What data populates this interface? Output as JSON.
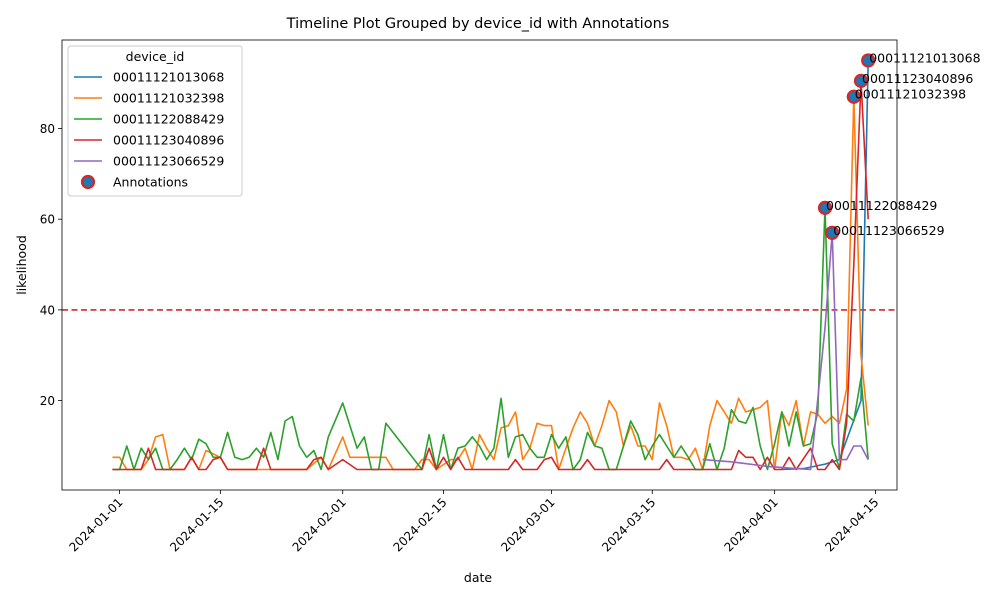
{
  "chart_data": {
    "type": "line",
    "title": "Timeline Plot Grouped by device_id with Annotations",
    "xlabel": "date",
    "ylabel": "likelihood",
    "xlim": [
      "2023-12-24",
      "2024-04-18"
    ],
    "ylim": [
      0,
      100
    ],
    "x_ticks": [
      "2024-01-01",
      "2024-01-15",
      "2024-02-01",
      "2024-02-15",
      "2024-03-01",
      "2024-03-15",
      "2024-04-01",
      "2024-04-15"
    ],
    "y_ticks": [
      20,
      40,
      60,
      80
    ],
    "threshold": {
      "value": 40,
      "color": "#d62728"
    },
    "legend": {
      "title": "device_id",
      "position": "top-left"
    },
    "series": [
      {
        "name": "00011121013068",
        "color": "#1f77b4",
        "points": [
          [
            "2024-04-02",
            4.8
          ],
          [
            "2024-04-05",
            5.0
          ],
          [
            "2024-04-08",
            6.0
          ],
          [
            "2024-04-10",
            7.0
          ],
          [
            "2024-04-13",
            20.0
          ],
          [
            "2024-04-14",
            95.0
          ]
        ]
      },
      {
        "name": "00011121032398",
        "color": "#ff7f0e",
        "points": [
          [
            "2023-12-31",
            7.5
          ],
          [
            "2024-01-01",
            7.5
          ],
          [
            "2024-01-02",
            4.8
          ],
          [
            "2024-01-04",
            4.8
          ],
          [
            "2024-01-05",
            7.0
          ],
          [
            "2024-01-06",
            12.0
          ],
          [
            "2024-01-07",
            12.5
          ],
          [
            "2024-01-08",
            4.8
          ],
          [
            "2024-01-10",
            4.8
          ],
          [
            "2024-01-11",
            7.5
          ],
          [
            "2024-01-12",
            4.8
          ],
          [
            "2024-01-13",
            9.0
          ],
          [
            "2024-01-15",
            7.5
          ],
          [
            "2024-01-16",
            4.8
          ],
          [
            "2024-01-27",
            4.8
          ],
          [
            "2024-01-29",
            7.5
          ],
          [
            "2024-01-30",
            4.8
          ],
          [
            "2024-02-01",
            12.0
          ],
          [
            "2024-02-02",
            7.5
          ],
          [
            "2024-02-07",
            7.5
          ],
          [
            "2024-02-08",
            4.8
          ],
          [
            "2024-02-11",
            4.8
          ],
          [
            "2024-02-12",
            7.0
          ],
          [
            "2024-02-13",
            7.0
          ],
          [
            "2024-02-14",
            4.8
          ],
          [
            "2024-02-16",
            7.0
          ],
          [
            "2024-02-17",
            7.0
          ],
          [
            "2024-02-18",
            9.5
          ],
          [
            "2024-02-19",
            4.8
          ],
          [
            "2024-02-20",
            12.5
          ],
          [
            "2024-02-21",
            9.5
          ],
          [
            "2024-02-22",
            7.0
          ],
          [
            "2024-02-23",
            14.0
          ],
          [
            "2024-02-24",
            14.5
          ],
          [
            "2024-02-25",
            17.5
          ],
          [
            "2024-02-26",
            7.0
          ],
          [
            "2024-02-27",
            9.5
          ],
          [
            "2024-02-28",
            15.0
          ],
          [
            "2024-02-29",
            14.5
          ],
          [
            "2024-03-01",
            14.5
          ],
          [
            "2024-03-02",
            4.8
          ],
          [
            "2024-03-03",
            9.5
          ],
          [
            "2024-03-04",
            14.0
          ],
          [
            "2024-03-05",
            17.5
          ],
          [
            "2024-03-06",
            15.0
          ],
          [
            "2024-03-07",
            10.0
          ],
          [
            "2024-03-08",
            14.5
          ],
          [
            "2024-03-09",
            20.0
          ],
          [
            "2024-03-10",
            17.5
          ],
          [
            "2024-03-11",
            10.0
          ],
          [
            "2024-03-12",
            14.5
          ],
          [
            "2024-03-13",
            10.0
          ],
          [
            "2024-03-14",
            10.0
          ],
          [
            "2024-03-15",
            7.0
          ],
          [
            "2024-03-16",
            19.5
          ],
          [
            "2024-03-17",
            14.5
          ],
          [
            "2024-03-18",
            7.5
          ],
          [
            "2024-03-19",
            7.5
          ],
          [
            "2024-03-20",
            7.0
          ],
          [
            "2024-03-21",
            9.5
          ],
          [
            "2024-03-22",
            4.8
          ],
          [
            "2024-03-23",
            14.5
          ],
          [
            "2024-03-24",
            20.0
          ],
          [
            "2024-03-25",
            17.5
          ],
          [
            "2024-03-26",
            15.0
          ],
          [
            "2024-03-27",
            20.5
          ],
          [
            "2024-03-28",
            17.5
          ],
          [
            "2024-03-29",
            18.0
          ],
          [
            "2024-03-30",
            18.5
          ],
          [
            "2024-03-31",
            20.0
          ],
          [
            "2024-04-01",
            4.8
          ],
          [
            "2024-04-02",
            17.5
          ],
          [
            "2024-04-03",
            14.5
          ],
          [
            "2024-04-04",
            20.0
          ],
          [
            "2024-04-05",
            10.0
          ],
          [
            "2024-04-06",
            17.5
          ],
          [
            "2024-04-07",
            17.0
          ],
          [
            "2024-04-08",
            15.0
          ],
          [
            "2024-04-09",
            16.5
          ],
          [
            "2024-04-10",
            15.0
          ],
          [
            "2024-04-11",
            22.5
          ],
          [
            "2024-04-12",
            87.0
          ],
          [
            "2024-04-13",
            30.0
          ],
          [
            "2024-04-14",
            14.5
          ]
        ]
      },
      {
        "name": "00011122088429",
        "color": "#2ca02c",
        "points": [
          [
            "2023-12-31",
            4.8
          ],
          [
            "2024-01-01",
            4.8
          ],
          [
            "2024-01-02",
            10.0
          ],
          [
            "2024-01-03",
            4.8
          ],
          [
            "2024-01-04",
            9.5
          ],
          [
            "2024-01-05",
            7.0
          ],
          [
            "2024-01-06",
            9.5
          ],
          [
            "2024-01-07",
            4.8
          ],
          [
            "2024-01-08",
            4.8
          ],
          [
            "2024-01-09",
            7.0
          ],
          [
            "2024-01-10",
            9.5
          ],
          [
            "2024-01-11",
            7.0
          ],
          [
            "2024-01-12",
            11.5
          ],
          [
            "2024-01-13",
            10.5
          ],
          [
            "2024-01-14",
            7.5
          ],
          [
            "2024-01-15",
            7.5
          ],
          [
            "2024-01-16",
            13.0
          ],
          [
            "2024-01-17",
            7.5
          ],
          [
            "2024-01-18",
            7.0
          ],
          [
            "2024-01-19",
            7.5
          ],
          [
            "2024-01-20",
            9.5
          ],
          [
            "2024-01-21",
            7.5
          ],
          [
            "2024-01-22",
            13.0
          ],
          [
            "2024-01-23",
            7.0
          ],
          [
            "2024-01-24",
            15.5
          ],
          [
            "2024-01-25",
            16.5
          ],
          [
            "2024-01-26",
            10.0
          ],
          [
            "2024-01-27",
            7.5
          ],
          [
            "2024-01-28",
            9.0
          ],
          [
            "2024-01-29",
            4.8
          ],
          [
            "2024-01-30",
            12.0
          ],
          [
            "2024-02-01",
            19.5
          ],
          [
            "2024-02-03",
            9.5
          ],
          [
            "2024-02-04",
            12.0
          ],
          [
            "2024-02-05",
            4.8
          ],
          [
            "2024-02-06",
            4.8
          ],
          [
            "2024-02-07",
            15.0
          ],
          [
            "2024-02-12",
            4.8
          ],
          [
            "2024-02-13",
            12.5
          ],
          [
            "2024-02-14",
            4.8
          ],
          [
            "2024-02-15",
            12.5
          ],
          [
            "2024-02-16",
            4.8
          ],
          [
            "2024-02-17",
            9.5
          ],
          [
            "2024-02-18",
            10.0
          ],
          [
            "2024-02-19",
            12.0
          ],
          [
            "2024-02-20",
            10.0
          ],
          [
            "2024-02-21",
            7.0
          ],
          [
            "2024-02-22",
            9.5
          ],
          [
            "2024-02-23",
            20.5
          ],
          [
            "2024-02-24",
            7.5
          ],
          [
            "2024-02-25",
            12.0
          ],
          [
            "2024-02-26",
            12.5
          ],
          [
            "2024-02-27",
            9.5
          ],
          [
            "2024-02-28",
            7.5
          ],
          [
            "2024-02-29",
            7.5
          ],
          [
            "2024-03-01",
            12.5
          ],
          [
            "2024-03-02",
            9.5
          ],
          [
            "2024-03-03",
            12.0
          ],
          [
            "2024-03-04",
            4.8
          ],
          [
            "2024-03-05",
            7.0
          ],
          [
            "2024-03-06",
            13.0
          ],
          [
            "2024-03-07",
            10.0
          ],
          [
            "2024-03-08",
            9.5
          ],
          [
            "2024-03-09",
            4.8
          ],
          [
            "2024-03-10",
            4.8
          ],
          [
            "2024-03-11",
            10.0
          ],
          [
            "2024-03-12",
            15.5
          ],
          [
            "2024-03-13",
            12.5
          ],
          [
            "2024-03-14",
            7.0
          ],
          [
            "2024-03-15",
            10.0
          ],
          [
            "2024-03-16",
            12.5
          ],
          [
            "2024-03-17",
            10.0
          ],
          [
            "2024-03-18",
            7.5
          ],
          [
            "2024-03-19",
            10.0
          ],
          [
            "2024-03-20",
            7.5
          ],
          [
            "2024-03-21",
            4.8
          ],
          [
            "2024-03-22",
            4.8
          ],
          [
            "2024-03-23",
            10.5
          ],
          [
            "2024-03-24",
            4.8
          ],
          [
            "2024-03-25",
            9.5
          ],
          [
            "2024-03-26",
            18.0
          ],
          [
            "2024-03-27",
            15.5
          ],
          [
            "2024-03-28",
            15.0
          ],
          [
            "2024-03-29",
            18.5
          ],
          [
            "2024-03-30",
            10.0
          ],
          [
            "2024-03-31",
            4.8
          ],
          [
            "2024-04-01",
            10.5
          ],
          [
            "2024-04-02",
            17.5
          ],
          [
            "2024-04-03",
            10.0
          ],
          [
            "2024-04-04",
            17.5
          ],
          [
            "2024-04-05",
            10.0
          ],
          [
            "2024-04-06",
            10.5
          ],
          [
            "2024-04-07",
            17.5
          ],
          [
            "2024-04-08",
            62.5
          ],
          [
            "2024-04-09",
            10.5
          ],
          [
            "2024-04-10",
            5.0
          ],
          [
            "2024-04-11",
            17.0
          ],
          [
            "2024-04-12",
            15.5
          ],
          [
            "2024-04-13",
            25.0
          ],
          [
            "2024-04-14",
            7.0
          ]
        ]
      },
      {
        "name": "00011123040896",
        "color": "#d62728",
        "points": [
          [
            "2023-12-31",
            4.8
          ],
          [
            "2024-01-04",
            4.8
          ],
          [
            "2024-01-05",
            9.5
          ],
          [
            "2024-01-06",
            4.8
          ],
          [
            "2024-01-10",
            4.8
          ],
          [
            "2024-01-11",
            7.5
          ],
          [
            "2024-01-12",
            4.8
          ],
          [
            "2024-01-13",
            4.8
          ],
          [
            "2024-01-14",
            7.0
          ],
          [
            "2024-01-15",
            7.5
          ],
          [
            "2024-01-16",
            4.8
          ],
          [
            "2024-01-20",
            4.8
          ],
          [
            "2024-01-21",
            9.5
          ],
          [
            "2024-01-22",
            4.8
          ],
          [
            "2024-01-27",
            4.8
          ],
          [
            "2024-01-28",
            7.0
          ],
          [
            "2024-01-29",
            7.5
          ],
          [
            "2024-01-30",
            4.8
          ],
          [
            "2024-02-01",
            7.0
          ],
          [
            "2024-02-03",
            4.8
          ],
          [
            "2024-02-12",
            4.8
          ],
          [
            "2024-02-13",
            9.5
          ],
          [
            "2024-02-14",
            4.8
          ],
          [
            "2024-02-15",
            7.5
          ],
          [
            "2024-02-16",
            4.8
          ],
          [
            "2024-02-17",
            7.5
          ],
          [
            "2024-02-18",
            4.8
          ],
          [
            "2024-02-24",
            4.8
          ],
          [
            "2024-02-25",
            7.0
          ],
          [
            "2024-02-26",
            4.8
          ],
          [
            "2024-02-28",
            4.8
          ],
          [
            "2024-02-29",
            7.0
          ],
          [
            "2024-03-01",
            7.5
          ],
          [
            "2024-03-02",
            4.8
          ],
          [
            "2024-03-05",
            4.8
          ],
          [
            "2024-03-06",
            7.0
          ],
          [
            "2024-03-07",
            4.8
          ],
          [
            "2024-03-16",
            4.8
          ],
          [
            "2024-03-17",
            7.0
          ],
          [
            "2024-03-18",
            4.8
          ],
          [
            "2024-03-26",
            4.8
          ],
          [
            "2024-03-27",
            9.0
          ],
          [
            "2024-03-28",
            7.5
          ],
          [
            "2024-03-29",
            7.5
          ],
          [
            "2024-03-30",
            4.8
          ],
          [
            "2024-03-31",
            7.5
          ],
          [
            "2024-04-01",
            4.8
          ],
          [
            "2024-04-02",
            4.8
          ],
          [
            "2024-04-03",
            7.5
          ],
          [
            "2024-04-04",
            4.8
          ],
          [
            "2024-04-06",
            9.5
          ],
          [
            "2024-04-07",
            4.8
          ],
          [
            "2024-04-08",
            4.8
          ],
          [
            "2024-04-09",
            7.0
          ],
          [
            "2024-04-10",
            4.8
          ],
          [
            "2024-04-11",
            15.0
          ],
          [
            "2024-04-12",
            50.0
          ],
          [
            "2024-04-13",
            90.5
          ],
          [
            "2024-04-14",
            60.0
          ]
        ]
      },
      {
        "name": "00011123066529",
        "color": "#9467bd",
        "points": [
          [
            "2024-03-22",
            7.0
          ],
          [
            "2024-03-26",
            6.5
          ],
          [
            "2024-03-31",
            5.5
          ],
          [
            "2024-04-04",
            5.0
          ],
          [
            "2024-04-06",
            4.8
          ],
          [
            "2024-04-08",
            36.0
          ],
          [
            "2024-04-09",
            57.0
          ],
          [
            "2024-04-10",
            7.0
          ],
          [
            "2024-04-11",
            7.0
          ],
          [
            "2024-04-12",
            10.0
          ],
          [
            "2024-04-13",
            10.0
          ],
          [
            "2024-04-14",
            7.0
          ]
        ]
      }
    ],
    "annotations": [
      {
        "label": "00011121013068",
        "x": "2024-04-14",
        "y": 95.0
      },
      {
        "label": "00011123040896",
        "x": "2024-04-13",
        "y": 90.5
      },
      {
        "label": "00011121032398",
        "x": "2024-04-12",
        "y": 87.0
      },
      {
        "label": "00011122088429",
        "x": "2024-04-08",
        "y": 62.5
      },
      {
        "label": "00011123066529",
        "x": "2024-04-09",
        "y": 57.0
      }
    ],
    "annotations_legend_label": "Annotations",
    "annotation_marker": {
      "fill": "#1f77b4",
      "edge": "#d62728"
    }
  }
}
